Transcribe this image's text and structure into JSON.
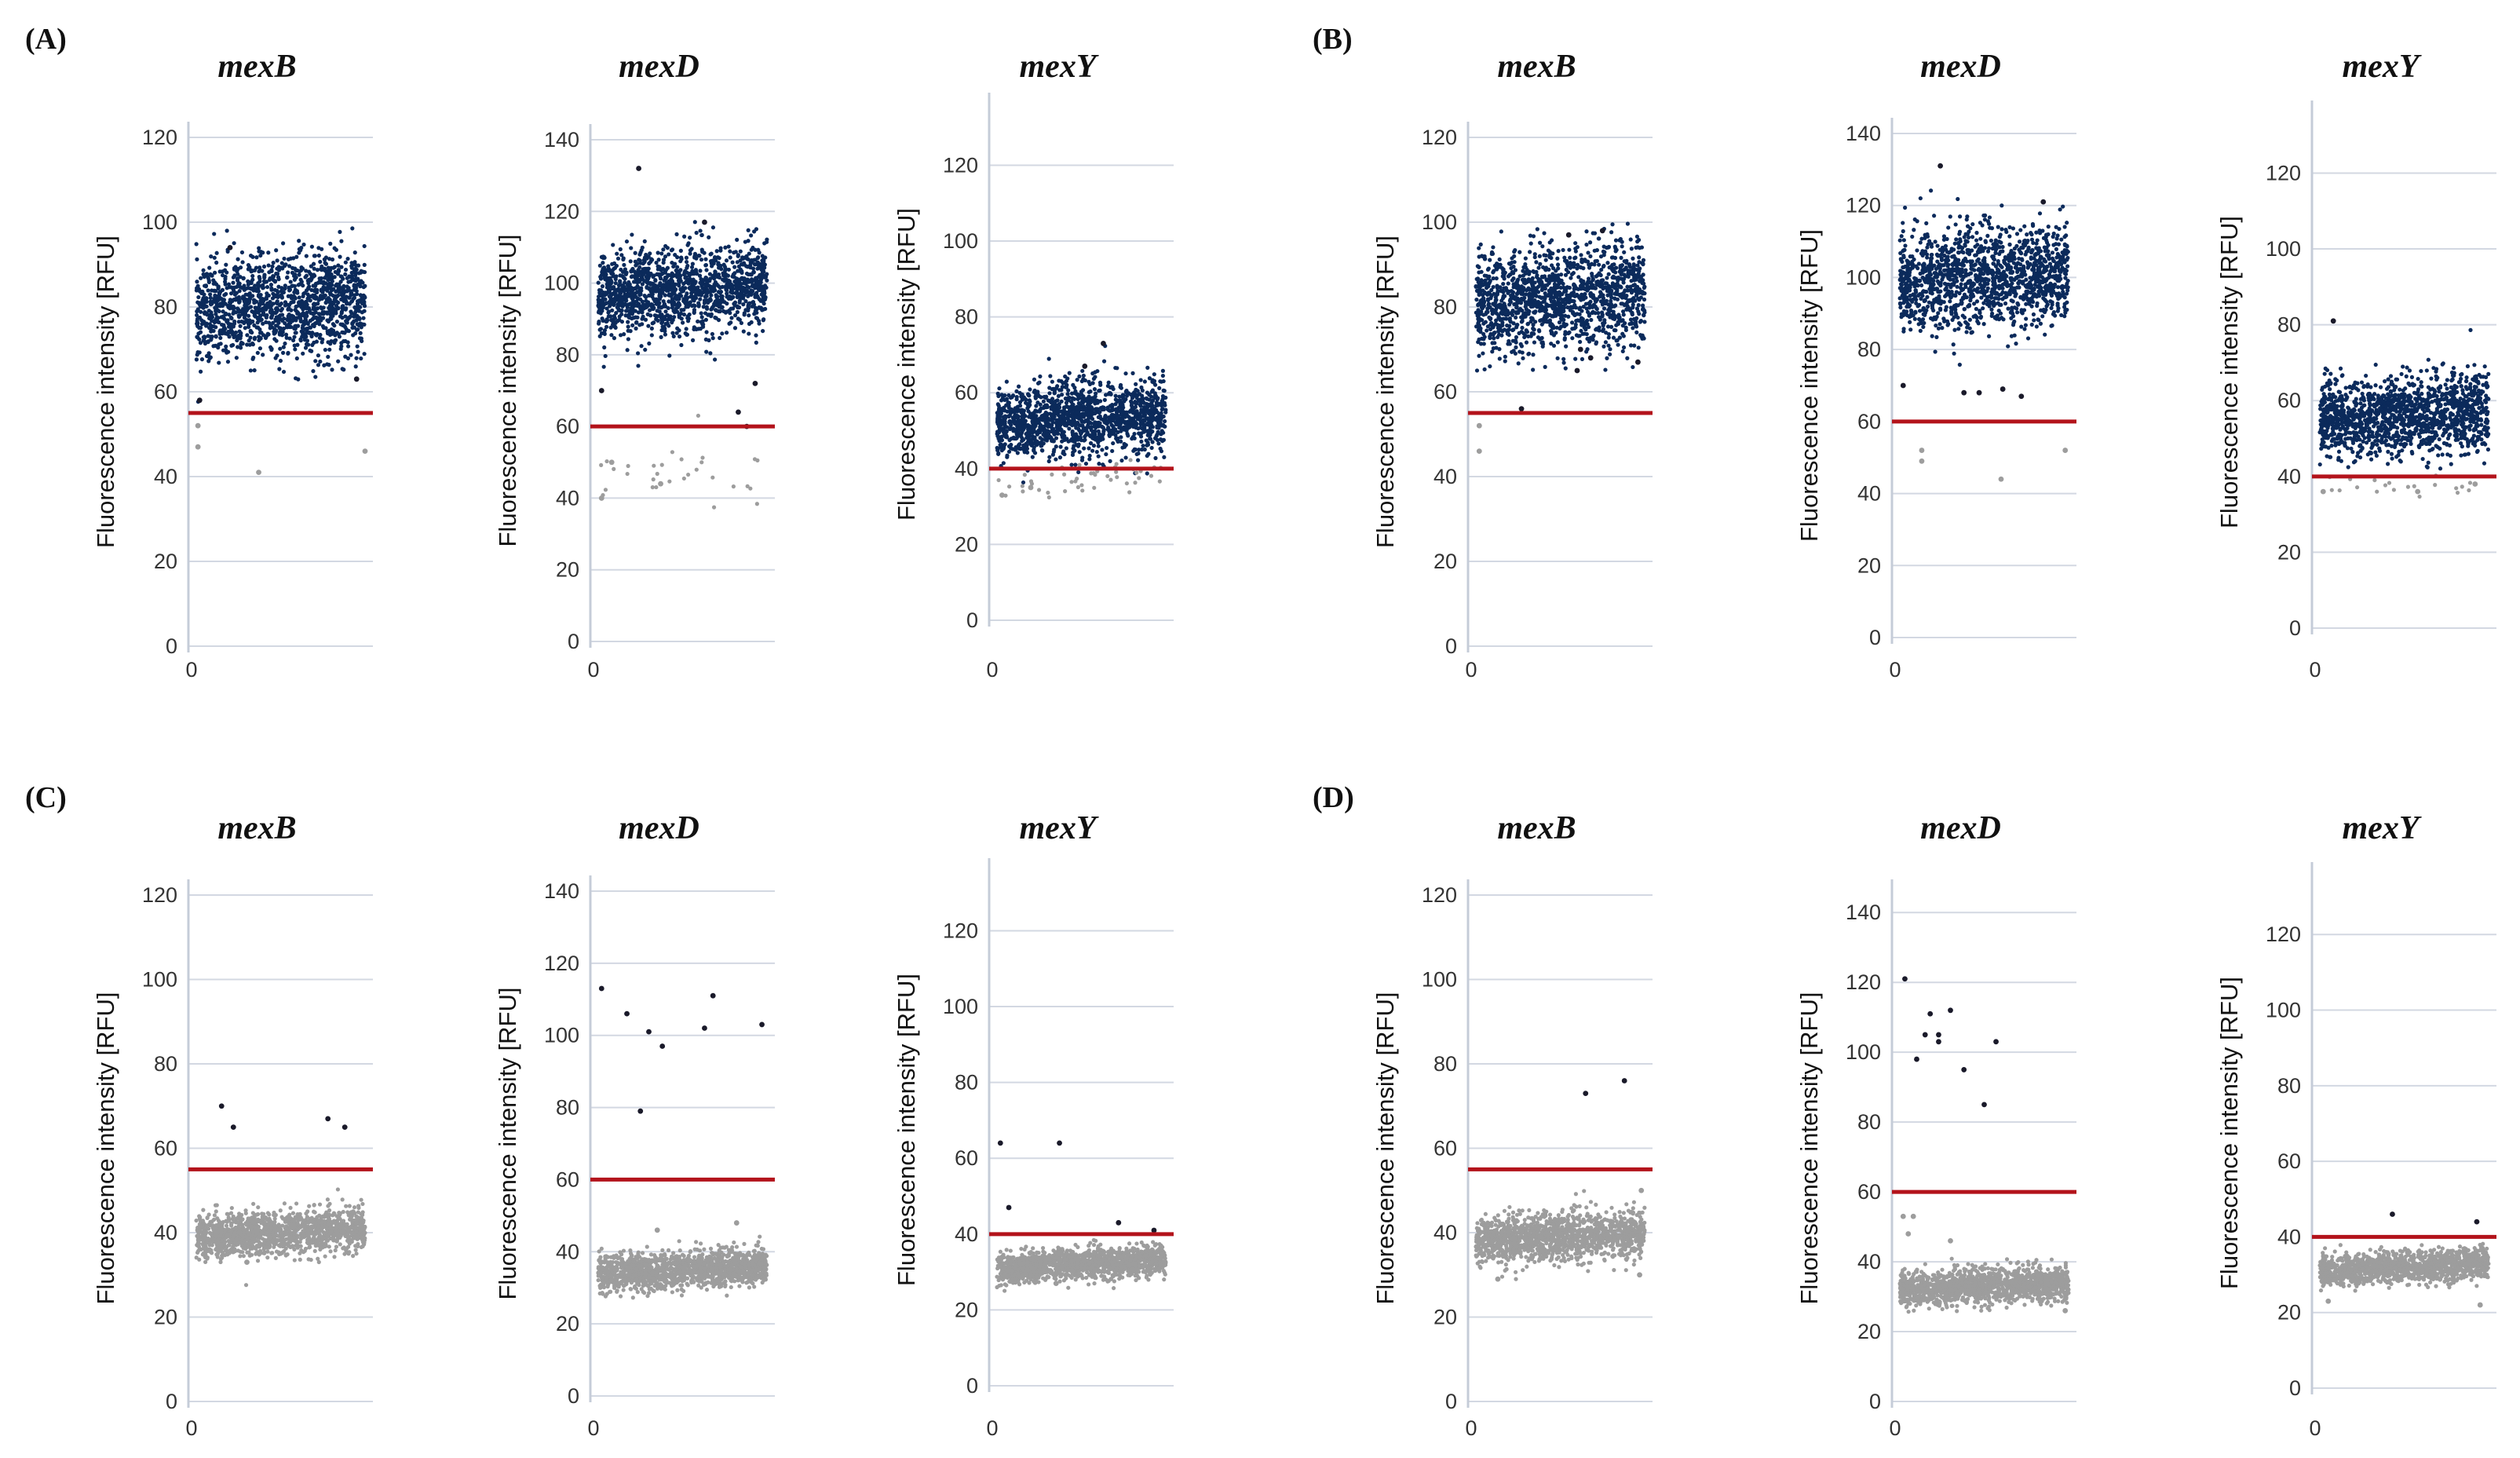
{
  "colors": {
    "positive": "#0b2a5b",
    "negative": "#9d9d9d",
    "outlier_positive": "#1a1a2a",
    "threshold": "#b3131b",
    "grid": "#d3d8e2"
  },
  "panels": [
    {
      "letter": "(A)",
      "charts": [
        0,
        1,
        2
      ]
    },
    {
      "letter": "(B)",
      "charts": [
        3,
        4,
        5
      ]
    },
    {
      "letter": "(C)",
      "charts": [
        6,
        7,
        8
      ]
    },
    {
      "letter": "(D)",
      "charts": [
        9,
        10,
        11
      ]
    }
  ],
  "chart_data": [
    {
      "type": "scatter",
      "panel": "(A)",
      "title": "mexB",
      "ylabel": "Fluorescence intensity [RFU]",
      "ylim": [
        0,
        120
      ],
      "yticks": [
        0,
        20,
        40,
        60,
        80,
        100,
        120
      ],
      "xticks": [
        0
      ],
      "threshold": 55,
      "grid": true,
      "series": [
        {
          "name": "",
          "kind": "positive",
          "center": 80,
          "spread": 6,
          "count": 1400
        },
        {
          "name": "",
          "kind": "negative",
          "center": 0,
          "spread": 0,
          "count": 0
        }
      ],
      "outliers": [
        [
          0.2,
          94,
          "p"
        ],
        [
          0.02,
          58,
          "p"
        ],
        [
          0.01,
          52,
          "n"
        ],
        [
          0.01,
          47,
          "n"
        ],
        [
          0.37,
          41,
          "n"
        ],
        [
          1.0,
          46,
          "n"
        ],
        [
          0.95,
          63,
          "p"
        ]
      ]
    },
    {
      "type": "scatter",
      "panel": "(A)",
      "title": "mexD",
      "ylabel": "Fluorescence intensity [RFU]",
      "ylim": [
        0,
        140
      ],
      "yticks": [
        0,
        20,
        40,
        60,
        80,
        100,
        120,
        140
      ],
      "xticks": [
        0
      ],
      "threshold": 60,
      "grid": true,
      "series": [
        {
          "name": "",
          "kind": "positive",
          "center": 98,
          "spread": 6,
          "count": 1400
        },
        {
          "name": "",
          "kind": "negative",
          "center": 45,
          "spread": 5,
          "count": 30
        }
      ],
      "outliers": [
        [
          0.24,
          132,
          "p"
        ],
        [
          0.63,
          117,
          "p"
        ],
        [
          0.02,
          70,
          "p"
        ],
        [
          0.02,
          40,
          "n"
        ],
        [
          0.08,
          50,
          "n"
        ],
        [
          0.37,
          44,
          "n"
        ],
        [
          0.83,
          64,
          "p"
        ],
        [
          0.88,
          60,
          "p"
        ],
        [
          0.93,
          72,
          "p"
        ]
      ]
    },
    {
      "type": "scatter",
      "panel": "(A)",
      "title": "mexY",
      "ylabel": "Fluorescence intensity [RFU]",
      "ylim": [
        0,
        135
      ],
      "yticks": [
        0,
        20,
        40,
        60,
        80,
        100,
        120
      ],
      "xticks": [
        0
      ],
      "threshold": 40,
      "grid": true,
      "series": [
        {
          "name": "",
          "kind": "positive",
          "center": 53,
          "spread": 5,
          "count": 1400
        },
        {
          "name": "",
          "kind": "negative",
          "center": 37,
          "spread": 2,
          "count": 45
        }
      ],
      "outliers": [
        [
          0.63,
          73,
          "p"
        ],
        [
          0.52,
          67,
          "p"
        ],
        [
          0.03,
          33,
          "n"
        ],
        [
          0.2,
          35,
          "n"
        ]
      ]
    },
    {
      "type": "scatter",
      "panel": "(B)",
      "title": "mexB",
      "ylabel": "Fluorescence intensity [RFU]",
      "ylim": [
        0,
        120
      ],
      "yticks": [
        0,
        20,
        40,
        60,
        80,
        100,
        120
      ],
      "xticks": [
        0
      ],
      "threshold": 55,
      "grid": true,
      "series": [
        {
          "name": "",
          "kind": "positive",
          "center": 82,
          "spread": 6,
          "count": 1400
        },
        {
          "name": "",
          "kind": "negative",
          "center": 0,
          "spread": 0,
          "count": 0
        }
      ],
      "outliers": [
        [
          0.55,
          97,
          "p"
        ],
        [
          0.75,
          98,
          "p"
        ],
        [
          0.62,
          70,
          "p"
        ],
        [
          0.68,
          68,
          "p"
        ],
        [
          0.6,
          65,
          "p"
        ],
        [
          0.96,
          67,
          "p"
        ],
        [
          0.02,
          52,
          "n"
        ],
        [
          0.02,
          46,
          "n"
        ],
        [
          0.27,
          56,
          "p"
        ]
      ]
    },
    {
      "type": "scatter",
      "panel": "(B)",
      "title": "mexD",
      "ylabel": "Fluorescence intensity [RFU]",
      "ylim": [
        0,
        140
      ],
      "yticks": [
        0,
        20,
        40,
        60,
        80,
        100,
        120,
        140
      ],
      "xticks": [
        0
      ],
      "threshold": 60,
      "grid": true,
      "series": [
        {
          "name": "",
          "kind": "positive",
          "center": 100,
          "spread": 7,
          "count": 1400
        },
        {
          "name": "",
          "kind": "negative",
          "center": 0,
          "spread": 0,
          "count": 0
        }
      ],
      "outliers": [
        [
          0.24,
          131,
          "p"
        ],
        [
          0.85,
          121,
          "p"
        ],
        [
          0.02,
          70,
          "p"
        ],
        [
          0.38,
          68,
          "p"
        ],
        [
          0.47,
          68,
          "p"
        ],
        [
          0.61,
          69,
          "p"
        ],
        [
          0.72,
          67,
          "p"
        ],
        [
          0.13,
          52,
          "n"
        ],
        [
          0.13,
          49,
          "n"
        ],
        [
          0.6,
          44,
          "n"
        ],
        [
          0.98,
          52,
          "n"
        ]
      ]
    },
    {
      "type": "scatter",
      "panel": "(B)",
      "title": "mexY",
      "ylabel": "Fluorescence intensity [RFU]",
      "ylim": [
        0,
        135
      ],
      "yticks": [
        0,
        20,
        40,
        60,
        80,
        100,
        120
      ],
      "xticks": [
        0
      ],
      "threshold": 40,
      "grid": true,
      "series": [
        {
          "name": "",
          "kind": "positive",
          "center": 56,
          "spread": 5,
          "count": 1400
        },
        {
          "name": "",
          "kind": "negative",
          "center": 37,
          "spread": 2,
          "count": 20
        }
      ],
      "outliers": [
        [
          0.08,
          81,
          "p"
        ],
        [
          0.02,
          36,
          "n"
        ],
        [
          0.58,
          36,
          "n"
        ],
        [
          0.92,
          38,
          "n"
        ]
      ]
    },
    {
      "type": "scatter",
      "panel": "(C)",
      "title": "mexB",
      "ylabel": "Fluorescence intensity [RFU]",
      "ylim": [
        0,
        120
      ],
      "yticks": [
        0,
        20,
        40,
        60,
        80,
        100,
        120
      ],
      "xticks": [
        0
      ],
      "threshold": 55,
      "grid": true,
      "series": [
        {
          "name": "",
          "kind": "positive",
          "center": 0,
          "spread": 0,
          "count": 0
        },
        {
          "name": "",
          "kind": "negative",
          "center": 40,
          "spread": 2.5,
          "count": 1400
        }
      ],
      "outliers": [
        [
          0.15,
          70,
          "p"
        ],
        [
          0.22,
          65,
          "p"
        ],
        [
          0.78,
          67,
          "p"
        ],
        [
          0.88,
          65,
          "p"
        ],
        [
          0.3,
          33,
          "n"
        ]
      ]
    },
    {
      "type": "scatter",
      "panel": "(C)",
      "title": "mexD",
      "ylabel": "Fluorescence intensity [RFU]",
      "ylim": [
        0,
        140
      ],
      "yticks": [
        0,
        20,
        40,
        60,
        80,
        100,
        120,
        140
      ],
      "xticks": [
        0
      ],
      "threshold": 60,
      "grid": true,
      "series": [
        {
          "name": "",
          "kind": "positive",
          "center": 0,
          "spread": 0,
          "count": 0
        },
        {
          "name": "",
          "kind": "negative",
          "center": 35,
          "spread": 2.5,
          "count": 1400
        }
      ],
      "outliers": [
        [
          0.02,
          113,
          "p"
        ],
        [
          0.17,
          106,
          "p"
        ],
        [
          0.3,
          101,
          "p"
        ],
        [
          0.38,
          97,
          "p"
        ],
        [
          0.25,
          79,
          "p"
        ],
        [
          0.63,
          102,
          "p"
        ],
        [
          0.68,
          111,
          "p"
        ],
        [
          0.97,
          103,
          "p"
        ],
        [
          0.35,
          46,
          "n"
        ],
        [
          0.82,
          48,
          "n"
        ]
      ]
    },
    {
      "type": "scatter",
      "panel": "(C)",
      "title": "mexY",
      "ylabel": "Fluorescence intensity [RFU]",
      "ylim": [
        0,
        135
      ],
      "yticks": [
        0,
        20,
        40,
        60,
        80,
        100,
        120
      ],
      "xticks": [
        0
      ],
      "threshold": 40,
      "grid": true,
      "series": [
        {
          "name": "",
          "kind": "positive",
          "center": 0,
          "spread": 0,
          "count": 0
        },
        {
          "name": "",
          "kind": "negative",
          "center": 32,
          "spread": 2,
          "count": 1400
        }
      ],
      "outliers": [
        [
          0.02,
          64,
          "p"
        ],
        [
          0.07,
          47,
          "p"
        ],
        [
          0.37,
          64,
          "p"
        ],
        [
          0.72,
          43,
          "p"
        ],
        [
          0.93,
          41,
          "p"
        ],
        [
          0.35,
          27,
          "n"
        ]
      ]
    },
    {
      "type": "scatter",
      "panel": "(D)",
      "title": "mexB",
      "ylabel": "Fluorescence intensity [RFU]",
      "ylim": [
        0,
        120
      ],
      "yticks": [
        0,
        20,
        40,
        60,
        80,
        100,
        120
      ],
      "xticks": [
        0
      ],
      "threshold": 55,
      "grid": true,
      "series": [
        {
          "name": "",
          "kind": "positive",
          "center": 0,
          "spread": 0,
          "count": 0
        },
        {
          "name": "",
          "kind": "negative",
          "center": 39,
          "spread": 2.8,
          "count": 1400
        }
      ],
      "outliers": [
        [
          0.65,
          73,
          "p"
        ],
        [
          0.88,
          76,
          "p"
        ],
        [
          0.13,
          29,
          "n"
        ],
        [
          0.97,
          30,
          "n"
        ],
        [
          0.98,
          50,
          "n"
        ]
      ]
    },
    {
      "type": "scatter",
      "panel": "(D)",
      "title": "mexD",
      "ylabel": "Fluorescence intensity [RFU]",
      "ylim": [
        0,
        145
      ],
      "yticks": [
        0,
        20,
        40,
        60,
        80,
        100,
        120,
        140
      ],
      "xticks": [
        0
      ],
      "threshold": 60,
      "grid": true,
      "series": [
        {
          "name": "",
          "kind": "positive",
          "center": 0,
          "spread": 0,
          "count": 0
        },
        {
          "name": "",
          "kind": "negative",
          "center": 33,
          "spread": 2.5,
          "count": 1400
        }
      ],
      "outliers": [
        [
          0.03,
          121,
          "p"
        ],
        [
          0.1,
          98,
          "p"
        ],
        [
          0.15,
          105,
          "p"
        ],
        [
          0.18,
          111,
          "p"
        ],
        [
          0.23,
          103,
          "p"
        ],
        [
          0.23,
          105,
          "p"
        ],
        [
          0.3,
          112,
          "p"
        ],
        [
          0.38,
          95,
          "p"
        ],
        [
          0.57,
          103,
          "p"
        ],
        [
          0.5,
          85,
          "p"
        ],
        [
          0.02,
          53,
          "n"
        ],
        [
          0.08,
          53,
          "n"
        ],
        [
          0.05,
          48,
          "n"
        ],
        [
          0.3,
          46,
          "n"
        ],
        [
          0.98,
          26,
          "n"
        ]
      ]
    },
    {
      "type": "scatter",
      "panel": "(D)",
      "title": "mexY",
      "ylabel": "Fluorescence intensity [RFU]",
      "ylim": [
        0,
        135
      ],
      "yticks": [
        0,
        20,
        40,
        60,
        80,
        100,
        120
      ],
      "xticks": [
        0
      ],
      "threshold": 40,
      "grid": true,
      "series": [
        {
          "name": "",
          "kind": "positive",
          "center": 0,
          "spread": 0,
          "count": 0
        },
        {
          "name": "",
          "kind": "negative",
          "center": 32,
          "spread": 2,
          "count": 1400
        }
      ],
      "outliers": [
        [
          0.43,
          46,
          "p"
        ],
        [
          0.93,
          44,
          "p"
        ],
        [
          0.05,
          23,
          "n"
        ],
        [
          0.95,
          22,
          "n"
        ]
      ]
    }
  ]
}
